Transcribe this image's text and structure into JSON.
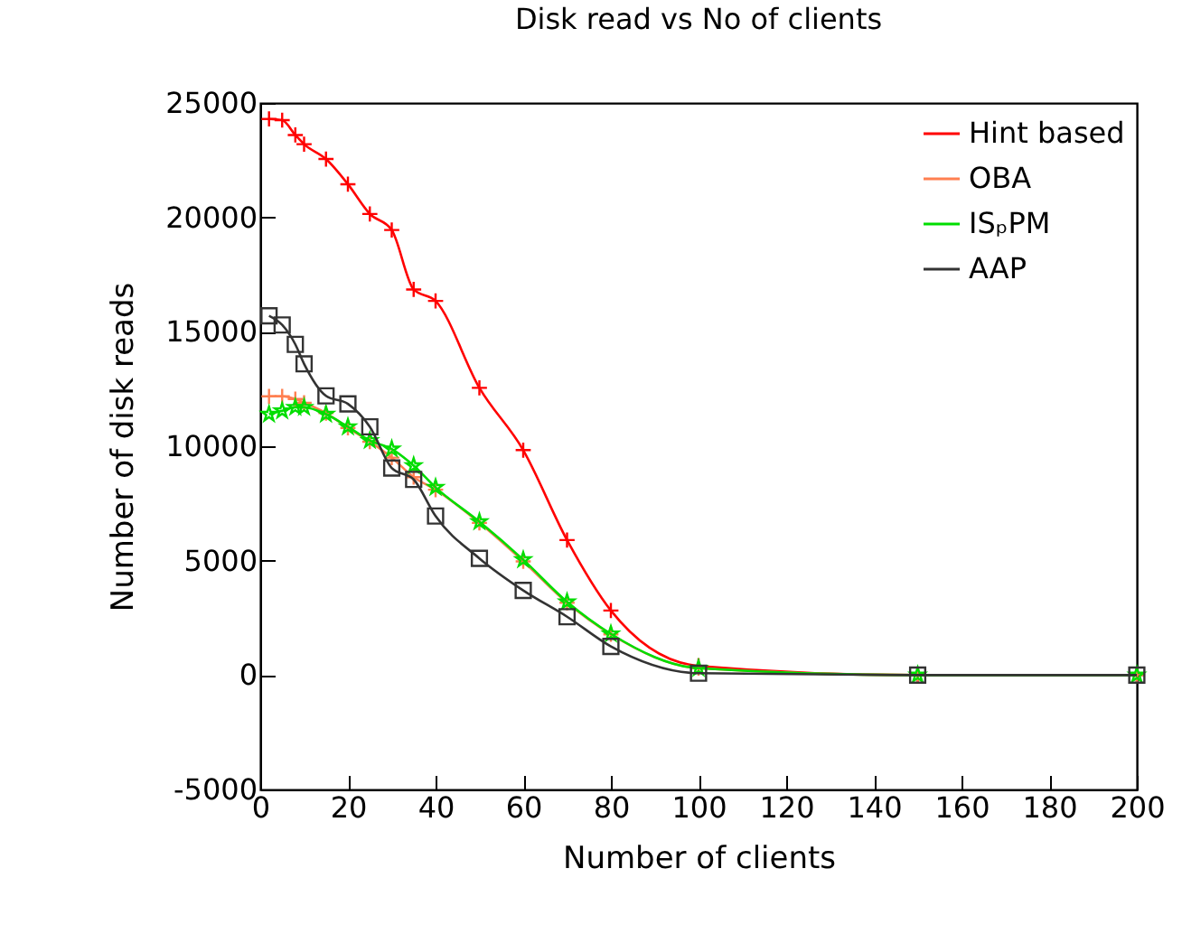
{
  "chart_data": {
    "type": "line",
    "title": "Disk read vs No of clients",
    "xlabel": "Number of clients",
    "ylabel": "Number of disk reads",
    "x": [
      2,
      5,
      8,
      10,
      15,
      20,
      25,
      30,
      35,
      40,
      50,
      60,
      70,
      80,
      100,
      150,
      200
    ],
    "series": [
      {
        "name": "Hint based",
        "color": "#ff0000",
        "marker": "cross",
        "values": [
          24300,
          24250,
          23600,
          23200,
          22550,
          21450,
          20150,
          19450,
          16850,
          16350,
          12550,
          9830,
          5900,
          2820,
          400,
          0,
          0
        ]
      },
      {
        "name": "OBA",
        "color": "#ff7f50",
        "marker": "cross",
        "values": [
          12180,
          12180,
          12060,
          11900,
          11450,
          10800,
          10200,
          9500,
          8650,
          8100,
          6650,
          4970,
          3160,
          1780,
          300,
          0,
          0
        ]
      },
      {
        "name": "ISₚPM",
        "color": "#00dd00",
        "marker": "star",
        "values": [
          11400,
          11550,
          11700,
          11700,
          11400,
          10850,
          10250,
          9880,
          9150,
          8200,
          6700,
          5040,
          3200,
          1800,
          300,
          0,
          0
        ]
      },
      {
        "name": "AAP",
        "color": "#333333",
        "marker": "square",
        "values": [
          15700,
          15300,
          14450,
          13600,
          12200,
          11850,
          10850,
          9050,
          8550,
          6950,
          5100,
          3700,
          2550,
          1250,
          80,
          0,
          0
        ]
      }
    ],
    "xlim": [
      0,
      200
    ],
    "xticks": [
      0,
      20,
      40,
      60,
      80,
      100,
      120,
      140,
      160,
      180,
      200
    ],
    "ylim": [
      -5000,
      25000
    ],
    "yticks": [
      -5000,
      0,
      5000,
      10000,
      15000,
      20000,
      25000
    ],
    "grid": false,
    "legend": "top right",
    "line_style": "solid"
  }
}
